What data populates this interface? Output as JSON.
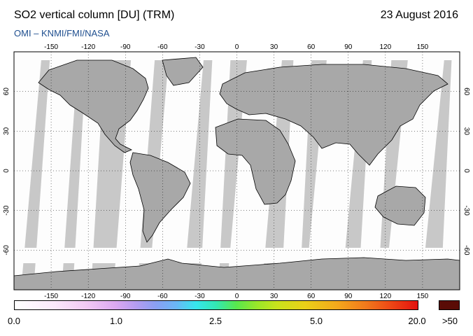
{
  "header": {
    "title": "SO2 vertical column [DU] (TRM)",
    "date": "23 August 2016",
    "source": "OMI  –  KNMI/FMI/NASA"
  },
  "map": {
    "projection": "equirectangular",
    "lon_range": [
      -180,
      180
    ],
    "lat_range": [
      -90,
      90
    ],
    "lon_ticks": [
      -150,
      -120,
      -90,
      -60,
      -30,
      0,
      30,
      60,
      90,
      120,
      150
    ],
    "lat_ticks": [
      60,
      30,
      0,
      -30,
      -60
    ],
    "lon_tick_labels": [
      "-150",
      "-120",
      "-90",
      "-60",
      "-30",
      "0",
      "30",
      "60",
      "90",
      "120",
      "150"
    ],
    "lat_tick_labels": [
      "60",
      "30",
      "0",
      "-30",
      "-60"
    ],
    "gridlines": true,
    "colors": {
      "no_data": "#c8c8c8",
      "land": "#a8a8a8",
      "swath": "#ffffff",
      "coast": "#000000"
    }
  },
  "legend": {
    "labels": [
      "0.0",
      "1.0",
      "2.5",
      "5.0",
      "20.0",
      ">50"
    ],
    "overflow_color": "#5a0c06"
  }
}
